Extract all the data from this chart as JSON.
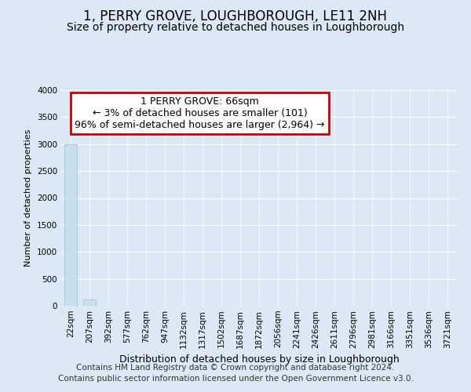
{
  "title": "1, PERRY GROVE, LOUGHBOROUGH, LE11 2NH",
  "subtitle": "Size of property relative to detached houses in Loughborough",
  "xlabel": "Distribution of detached houses by size in Loughborough",
  "ylabel": "Number of detached properties",
  "bar_color": "#c8dff0",
  "bar_edge_color": "#a0c0d8",
  "categories": [
    "22sqm",
    "207sqm",
    "392sqm",
    "577sqm",
    "762sqm",
    "947sqm",
    "1132sqm",
    "1317sqm",
    "1502sqm",
    "1687sqm",
    "1872sqm",
    "2056sqm",
    "2241sqm",
    "2426sqm",
    "2611sqm",
    "2796sqm",
    "2981sqm",
    "3166sqm",
    "3351sqm",
    "3536sqm",
    "3721sqm"
  ],
  "values": [
    2995,
    110,
    2,
    1,
    0,
    0,
    0,
    0,
    0,
    0,
    0,
    0,
    0,
    0,
    0,
    0,
    0,
    0,
    0,
    0,
    0
  ],
  "ylim": [
    0,
    4000
  ],
  "yticks": [
    0,
    500,
    1000,
    1500,
    2000,
    2500,
    3000,
    3500,
    4000
  ],
  "annotation_line1": "1 PERRY GROVE: 66sqm",
  "annotation_line2": "← 3% of detached houses are smaller (101)",
  "annotation_line3": "96% of semi-detached houses are larger (2,964) →",
  "annotation_box_color": "#ffffff",
  "annotation_box_edge_color": "#cc0000",
  "background_color": "#dce8f5",
  "plot_bg_color": "#dce8f5",
  "footer_line1": "Contains HM Land Registry data © Crown copyright and database right 2024.",
  "footer_line2": "Contains public sector information licensed under the Open Government Licence v3.0.",
  "title_fontsize": 12,
  "subtitle_fontsize": 10,
  "xlabel_fontsize": 9,
  "ylabel_fontsize": 8,
  "tick_fontsize": 7.5,
  "annotation_fontsize": 9,
  "footer_fontsize": 7.5
}
